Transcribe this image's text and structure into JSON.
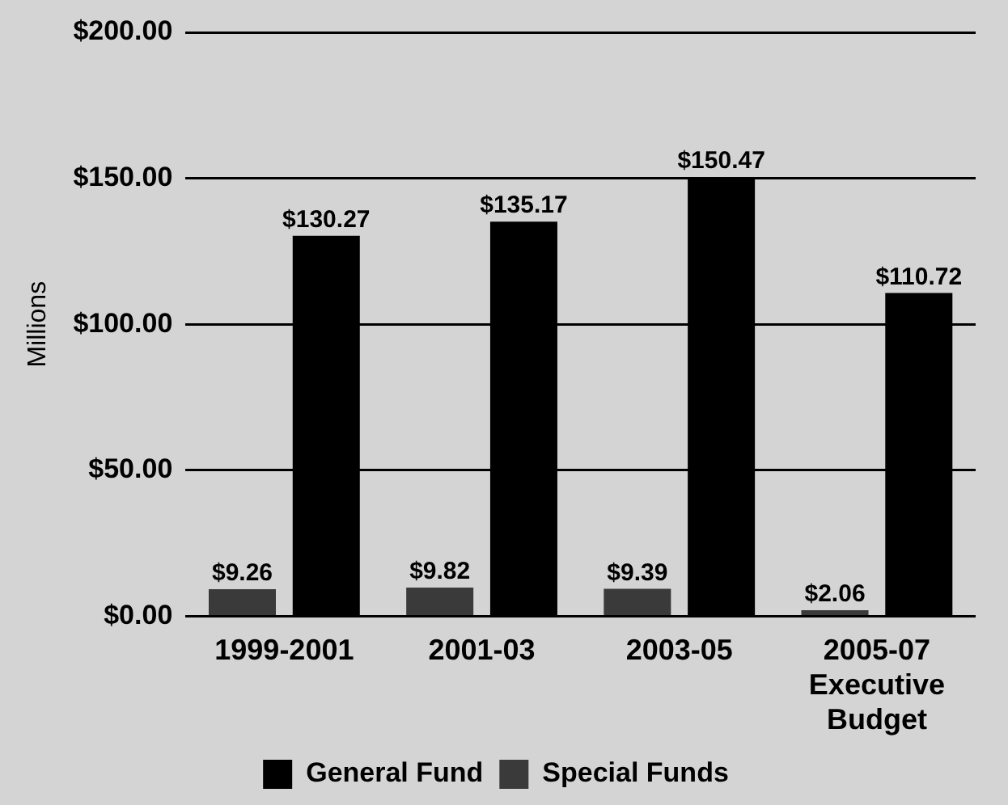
{
  "chart_data": {
    "type": "bar",
    "ylabel": "Millions",
    "categories": [
      "1999-2001",
      "2001-03",
      "2003-05",
      "2005-07 Executive Budget"
    ],
    "series": [
      {
        "name": "Special Funds",
        "color": "#3a3a3a",
        "values": [
          9.26,
          9.82,
          9.39,
          2.06
        ],
        "value_labels": [
          "$9.26",
          "$9.82",
          "$9.39",
          "$2.06"
        ]
      },
      {
        "name": "General Fund",
        "color": "#000000",
        "values": [
          130.27,
          135.17,
          150.47,
          110.72
        ],
        "value_labels": [
          "$130.27",
          "$135.17",
          "$150.47",
          "$110.72"
        ]
      }
    ],
    "ylim": [
      0,
      200
    ],
    "yticks": [
      {
        "value": 0,
        "label": "$0.00"
      },
      {
        "value": 50,
        "label": "$50.00"
      },
      {
        "value": 100,
        "label": "$100.00"
      },
      {
        "value": 150,
        "label": "$150.00"
      },
      {
        "value": 200,
        "label": "$200.00"
      }
    ],
    "grid": "y",
    "legend": "bottom"
  }
}
